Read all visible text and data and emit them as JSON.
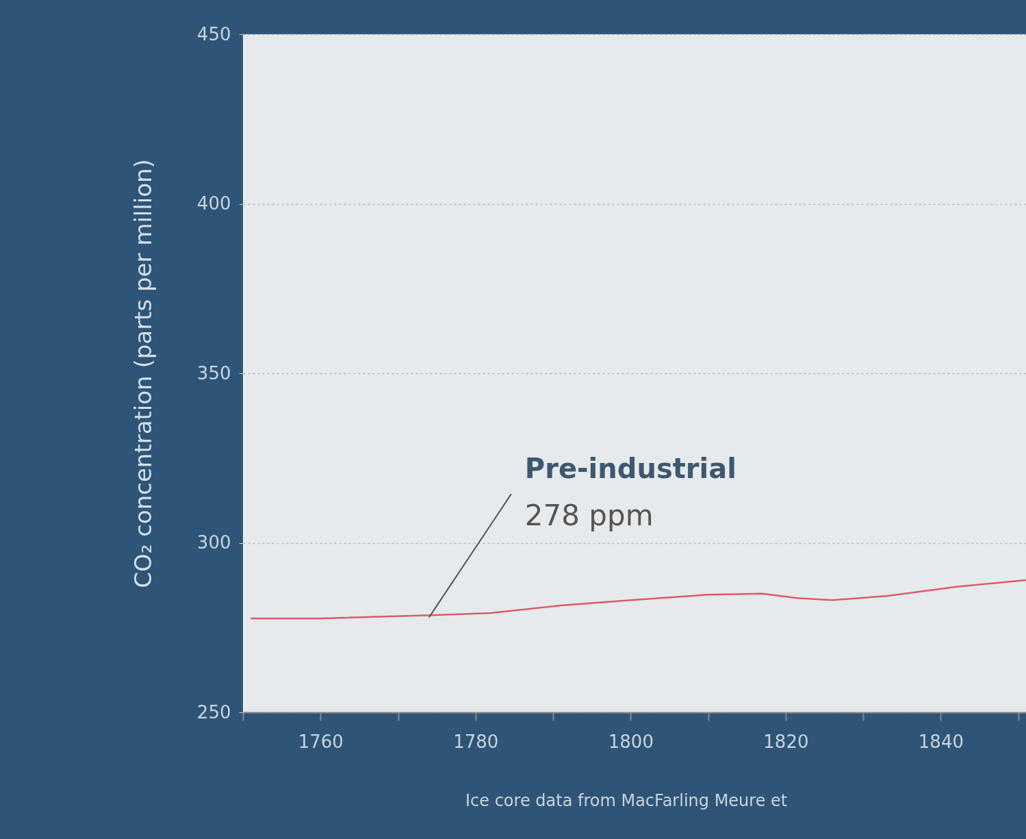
{
  "chart_data": {
    "type": "line",
    "ylabel": "CO₂ concentration (parts per million)",
    "x": [
      1751,
      1760,
      1775,
      1782,
      1791,
      1800,
      1810,
      1817,
      1821.5,
      1826,
      1833,
      1842,
      1851
    ],
    "series": [
      {
        "color": "#e05a6a",
        "values": [
          277.7,
          277.7,
          278.7,
          279.3,
          281.5,
          283.1,
          284.7,
          285,
          283.7,
          283.1,
          284.3,
          287,
          289
        ]
      }
    ],
    "xlim": [
      1750,
      1851
    ],
    "xticks": [
      {
        "value": 1750,
        "label": null
      },
      1760,
      {
        "value": 1770,
        "label": null
      },
      1780,
      {
        "value": 1790,
        "label": null
      },
      1800,
      {
        "value": 1810,
        "label": null
      },
      1820,
      {
        "value": 1830,
        "label": null
      },
      1840,
      {
        "value": 1850,
        "label": null
      }
    ],
    "ylim": [
      250,
      450
    ],
    "yticks": [
      250,
      300,
      350,
      400,
      450
    ],
    "grid": "y",
    "line_style": "solid",
    "annotations": [
      {
        "text": "Pre-industrial",
        "x": 1774,
        "y": 278
      },
      {
        "text": "278 ppm",
        "x": 1774,
        "y": 278
      },
      "Ice core data from MacFarling Meure et"
    ]
  }
}
